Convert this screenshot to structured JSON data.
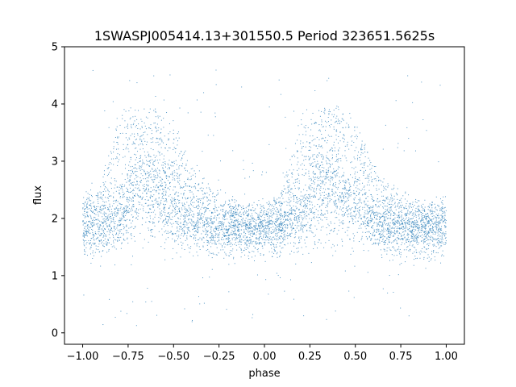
{
  "chart_data": {
    "type": "scatter",
    "title": "1SWASPJ005414.13+301550.5 Period 323651.5625s",
    "xlabel": "phase",
    "ylabel": "flux",
    "xlim": [
      -1.1,
      1.1
    ],
    "ylim": [
      -0.2,
      5.0
    ],
    "xticks": [
      -1.0,
      -0.75,
      -0.5,
      -0.25,
      0.0,
      0.25,
      0.5,
      0.75,
      1.0
    ],
    "xtick_labels": [
      "−1.00",
      "−0.75",
      "−0.50",
      "−0.25",
      "0.00",
      "0.25",
      "0.50",
      "0.75",
      "1.00"
    ],
    "yticks": [
      0,
      1,
      2,
      3,
      4,
      5
    ],
    "ytick_labels": [
      "0",
      "1",
      "2",
      "3",
      "4",
      "5"
    ],
    "grid": false,
    "marker_color": "#1f77b4",
    "envelope": [
      {
        "x": -1.0,
        "y_low": 1.3,
        "y_med": 1.78,
        "y_high": 2.3
      },
      {
        "x": -0.9,
        "y_low": 1.3,
        "y_med": 1.8,
        "y_high": 2.6
      },
      {
        "x": -0.8,
        "y_low": 1.4,
        "y_med": 2.0,
        "y_high": 3.8
      },
      {
        "x": -0.7,
        "y_low": 1.5,
        "y_med": 2.5,
        "y_high": 3.9
      },
      {
        "x": -0.6,
        "y_low": 1.5,
        "y_med": 2.4,
        "y_high": 3.9
      },
      {
        "x": -0.5,
        "y_low": 1.4,
        "y_med": 2.1,
        "y_high": 3.6
      },
      {
        "x": -0.4,
        "y_low": 1.4,
        "y_med": 1.9,
        "y_high": 2.9
      },
      {
        "x": -0.3,
        "y_low": 1.3,
        "y_med": 1.8,
        "y_high": 2.5
      },
      {
        "x": -0.2,
        "y_low": 1.3,
        "y_med": 1.75,
        "y_high": 2.3
      },
      {
        "x": -0.1,
        "y_low": 1.3,
        "y_med": 1.75,
        "y_high": 2.2
      },
      {
        "x": 0.0,
        "y_low": 1.3,
        "y_med": 1.75,
        "y_high": 2.2
      },
      {
        "x": 0.1,
        "y_low": 1.3,
        "y_med": 1.8,
        "y_high": 2.5
      },
      {
        "x": 0.2,
        "y_low": 1.4,
        "y_med": 2.0,
        "y_high": 3.8
      },
      {
        "x": 0.3,
        "y_low": 1.5,
        "y_med": 2.5,
        "y_high": 3.9
      },
      {
        "x": 0.4,
        "y_low": 1.5,
        "y_med": 2.4,
        "y_high": 3.9
      },
      {
        "x": 0.5,
        "y_low": 1.4,
        "y_med": 2.1,
        "y_high": 3.6
      },
      {
        "x": 0.6,
        "y_low": 1.4,
        "y_med": 1.9,
        "y_high": 2.9
      },
      {
        "x": 0.7,
        "y_low": 1.3,
        "y_med": 1.8,
        "y_high": 2.5
      },
      {
        "x": 0.8,
        "y_low": 1.3,
        "y_med": 1.75,
        "y_high": 2.3
      },
      {
        "x": 0.9,
        "y_low": 1.3,
        "y_med": 1.75,
        "y_high": 2.2
      },
      {
        "x": 1.0,
        "y_low": 1.3,
        "y_med": 1.78,
        "y_high": 2.3
      }
    ]
  }
}
